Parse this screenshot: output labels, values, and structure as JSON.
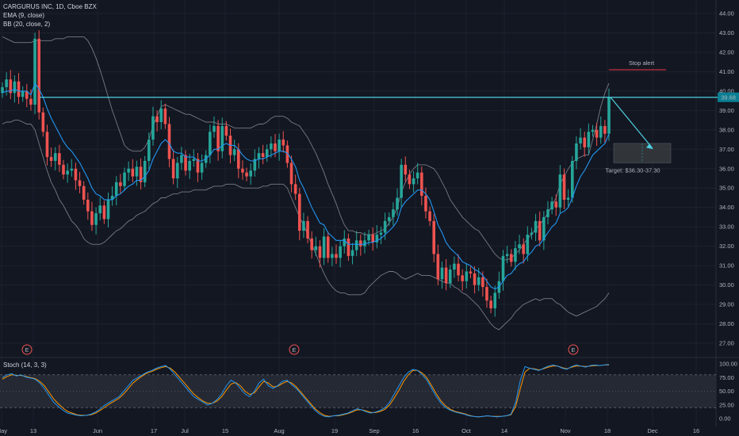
{
  "legend": {
    "symbol_line": "CARGURUS INC, 1D, Cboe BZX",
    "ema_label": "EMA (9, close)",
    "bb_label": "BB (20, close, 2)",
    "stoch_label": "Stoch (14, 3, 3)"
  },
  "price_badge": "39.68",
  "annotations": {
    "stop_alert": "Stop alert",
    "target": "Target: $36.30-37.30",
    "earnings_marker": "E"
  },
  "colors": {
    "background": "#131722",
    "up": "#26a69a",
    "down": "#ef5350",
    "ema": "#2196f3",
    "bollinger": "#787b86",
    "resistance": "#4dd0e1",
    "stop_line": "#f23645",
    "stoch": "#2196f3",
    "stoch_band": "#2a2e39"
  },
  "chart_data": [
    {
      "type": "candlestick",
      "title": "CARGURUS INC, 1D, Cboe BZX",
      "x_ticks": [
        "May",
        "13",
        "Jun",
        "17",
        "Jul",
        "15",
        "Aug",
        "19",
        "Sep",
        "16",
        "Oct",
        "14",
        "Nov",
        "18",
        "Dec",
        "16"
      ],
      "y_ticks": [
        "27.00",
        "28.00",
        "29.00",
        "30.00",
        "31.00",
        "32.00",
        "33.00",
        "34.00",
        "35.00",
        "36.00",
        "37.00",
        "38.00",
        "39.00",
        "40.00",
        "41.00",
        "42.00",
        "43.00",
        "44.00"
      ],
      "ylim": [
        26.5,
        44.3
      ],
      "last_price": 39.68,
      "resistance_level": 39.68,
      "stop_alert_level": 41.1,
      "target_range": [
        36.3,
        37.3
      ],
      "close": [
        40.2,
        40.6,
        39.9,
        40.5,
        39.7,
        40.0,
        39.6,
        39.3,
        42.7,
        38.9,
        37.9,
        36.6,
        36.4,
        36.8,
        36.2,
        35.7,
        35.9,
        36.0,
        35.4,
        35.1,
        34.4,
        33.8,
        33.1,
        33.7,
        34.1,
        33.4,
        34.4,
        34.6,
        35.3,
        35.1,
        35.8,
        36.0,
        35.6,
        36.1,
        35.3,
        36.4,
        37.5,
        38.7,
        38.4,
        39.1,
        38.3,
        36.5,
        35.5,
        36.3,
        36.7,
        35.9,
        36.4,
        36.5,
        35.8,
        36.3,
        36.7,
        37.9,
        38.2,
        36.9,
        38.2,
        37.7,
        36.7,
        37.0,
        36.0,
        35.8,
        35.6,
        35.9,
        36.5,
        36.8,
        36.6,
        37.0,
        37.3,
        36.9,
        37.5,
        37.2,
        36.3,
        35.2,
        34.7,
        32.8,
        33.3,
        32.4,
        31.8,
        32.0,
        31.4,
        32.5,
        31.4,
        31.6,
        31.4,
        32.0,
        32.4,
        31.5,
        31.8,
        32.3,
        32.0,
        32.3,
        32.6,
        32.2,
        32.6,
        32.7,
        33.3,
        33.5,
        33.9,
        34.5,
        36.2,
        35.7,
        35.2,
        35.5,
        35.8,
        34.6,
        33.8,
        33.3,
        31.6,
        30.3,
        30.9,
        30.1,
        30.8,
        31.1,
        30.5,
        30.2,
        30.7,
        30.6,
        30.0,
        30.4,
        29.9,
        29.2,
        28.8,
        29.6,
        30.2,
        31.5,
        31.6,
        31.2,
        31.9,
        32.1,
        31.6,
        32.6,
        32.7,
        33.3,
        32.3,
        33.5,
        33.9,
        34.3,
        34.0,
        35.7,
        34.4,
        34.5,
        36.4,
        37.3,
        37.6,
        37.1,
        37.9,
        38.0,
        37.6,
        38.2,
        37.8,
        39.7
      ],
      "series": [
        {
          "name": "EMA (9, close)",
          "values": [
            39.9,
            40.0,
            40.0,
            40.1,
            40.0,
            40.0,
            40.0,
            39.8,
            40.4,
            40.1,
            39.7,
            39.1,
            38.6,
            38.2,
            37.8,
            37.4,
            37.1,
            36.9,
            36.6,
            36.3,
            35.9,
            35.5,
            35.0,
            34.7,
            34.6,
            34.4,
            34.4,
            34.4,
            34.6,
            34.7,
            34.9,
            35.1,
            35.2,
            35.4,
            35.4,
            35.6,
            35.9,
            36.5,
            36.9,
            37.3,
            37.5,
            37.3,
            36.9,
            36.8,
            36.8,
            36.6,
            36.6,
            36.6,
            36.4,
            36.4,
            36.5,
            36.7,
            37.0,
            37.0,
            37.2,
            37.3,
            37.2,
            37.2,
            37.0,
            36.7,
            36.5,
            36.4,
            36.4,
            36.5,
            36.5,
            36.6,
            36.7,
            36.8,
            36.9,
            36.9,
            36.8,
            36.5,
            36.1,
            35.4,
            35.0,
            34.5,
            34.0,
            33.6,
            33.2,
            33.1,
            32.7,
            32.5,
            32.3,
            32.3,
            32.3,
            32.1,
            32.1,
            32.1,
            32.1,
            32.1,
            32.2,
            32.2,
            32.3,
            32.4,
            32.6,
            32.8,
            33.0,
            33.3,
            34.0,
            34.3,
            34.5,
            34.7,
            34.9,
            34.9,
            34.7,
            34.4,
            33.8,
            33.1,
            32.7,
            32.2,
            31.9,
            31.7,
            31.5,
            31.2,
            31.1,
            31.0,
            30.8,
            30.7,
            30.5,
            30.2,
            29.9,
            29.8,
            29.9,
            30.2,
            30.5,
            30.6,
            30.9,
            31.1,
            31.2,
            31.5,
            31.7,
            32.0,
            32.1,
            32.4,
            32.7,
            33.0,
            33.2,
            33.7,
            33.8,
            34.0,
            34.5,
            35.1,
            35.6,
            35.9,
            36.3,
            36.7,
            36.9,
            37.1,
            37.3,
            37.8
          ]
        },
        {
          "name": "BB upper",
          "values": [
            42.8,
            42.7,
            42.6,
            42.5,
            42.5,
            42.5,
            42.5,
            42.5,
            42.6,
            42.6,
            42.6,
            42.6,
            42.6,
            42.7,
            42.7,
            42.7,
            42.8,
            42.8,
            42.8,
            42.8,
            42.8,
            42.6,
            42.2,
            41.7,
            41.1,
            40.4,
            39.7,
            39.0,
            38.4,
            37.8,
            37.2,
            37.0,
            36.9,
            36.9,
            36.9,
            37.1,
            37.5,
            38.2,
            38.7,
            39.2,
            39.3,
            39.2,
            39.1,
            39.0,
            38.9,
            38.8,
            38.8,
            38.7,
            38.6,
            38.5,
            38.4,
            38.4,
            38.4,
            38.3,
            38.3,
            38.3,
            38.2,
            38.1,
            38.1,
            38.1,
            38.1,
            38.1,
            38.2,
            38.3,
            38.3,
            38.4,
            38.6,
            38.7,
            38.7,
            38.7,
            38.6,
            38.4,
            38.3,
            38.2,
            37.9,
            37.6,
            37.2,
            36.8,
            36.3,
            35.8,
            35.2,
            34.7,
            34.2,
            33.6,
            33.1,
            32.8,
            32.8,
            32.7,
            32.7,
            32.6,
            32.6,
            32.6,
            32.7,
            32.8,
            32.9,
            33.2,
            33.5,
            34.0,
            34.8,
            35.3,
            35.7,
            36.0,
            36.2,
            36.2,
            36.2,
            36.1,
            36.0,
            35.7,
            35.3,
            34.9,
            34.4,
            34.1,
            33.8,
            33.5,
            33.3,
            33.1,
            32.9,
            32.8,
            32.5,
            32.2,
            31.9,
            31.6,
            31.4,
            31.3,
            31.3,
            31.4,
            31.6,
            31.8,
            32.1,
            32.4,
            32.6,
            32.9,
            33.1,
            33.4,
            33.7,
            34.1,
            34.5,
            35.2,
            35.6,
            36.0,
            36.3,
            36.5,
            36.6,
            36.7,
            36.7,
            37.5,
            38.3,
            39.2,
            39.9,
            40.4
          ]
        },
        {
          "name": "BB lower",
          "values": [
            38.3,
            38.4,
            38.4,
            38.5,
            38.5,
            38.4,
            38.3,
            38.3,
            38.0,
            37.3,
            36.6,
            35.9,
            35.3,
            34.9,
            34.4,
            34.1,
            33.7,
            33.3,
            33.1,
            32.8,
            32.4,
            32.2,
            32.1,
            32.1,
            32.1,
            32.2,
            32.4,
            32.6,
            32.8,
            32.9,
            33.1,
            33.3,
            33.4,
            33.6,
            33.7,
            33.8,
            34.0,
            34.2,
            34.3,
            34.5,
            34.5,
            34.6,
            34.7,
            34.7,
            34.8,
            34.8,
            34.8,
            34.9,
            34.9,
            34.9,
            34.9,
            35.0,
            35.1,
            35.1,
            35.1,
            35.2,
            35.2,
            35.2,
            35.1,
            35.0,
            35.0,
            35.0,
            35.0,
            35.0,
            35.1,
            35.1,
            35.2,
            35.2,
            35.2,
            35.2,
            35.0,
            34.5,
            34.0,
            33.5,
            33.1,
            32.6,
            32.1,
            31.6,
            31.1,
            30.6,
            30.2,
            29.9,
            29.7,
            29.6,
            29.6,
            29.5,
            29.5,
            29.5,
            29.5,
            29.6,
            29.9,
            30.1,
            30.3,
            30.5,
            30.6,
            30.7,
            30.7,
            30.6,
            30.4,
            30.3,
            30.4,
            30.5,
            30.6,
            30.5,
            30.5,
            30.5,
            30.4,
            30.3,
            30.2,
            30.1,
            30.1,
            29.9,
            29.8,
            29.6,
            29.5,
            29.3,
            29.1,
            28.9,
            28.6,
            28.3,
            28.0,
            27.8,
            27.7,
            27.9,
            28.1,
            28.3,
            28.6,
            28.8,
            29.0,
            29.1,
            29.2,
            29.3,
            29.2,
            29.3,
            29.3,
            29.3,
            29.1,
            29.0,
            28.8,
            28.6,
            28.5,
            28.4,
            28.5,
            28.6,
            28.7,
            28.8,
            28.9,
            29.1,
            29.3,
            29.6
          ]
        }
      ],
      "earnings_markers": 3
    },
    {
      "type": "line",
      "title": "Stoch (14, 3, 3)",
      "y_ticks": [
        "0.00",
        "25.00",
        "50.00",
        "75.00",
        "100.00"
      ],
      "ylim": [
        -5,
        105
      ],
      "bands": [
        20,
        80
      ],
      "series": [
        {
          "name": "%K",
          "values": [
            75,
            80,
            82,
            78,
            80,
            76,
            74,
            72,
            65,
            55,
            42,
            30,
            22,
            15,
            10,
            8,
            6,
            5,
            6,
            8,
            12,
            18,
            25,
            30,
            35,
            40,
            50,
            60,
            70,
            75,
            80,
            85,
            88,
            92,
            95,
            97,
            90,
            80,
            70,
            60,
            50,
            40,
            35,
            30,
            25,
            28,
            35,
            45,
            60,
            70,
            65,
            55,
            45,
            40,
            50,
            65,
            72,
            60,
            55,
            60,
            68,
            70,
            62,
            55,
            45,
            35,
            25,
            15,
            8,
            4,
            3,
            5,
            6,
            8,
            10,
            14,
            18,
            16,
            12,
            10,
            12,
            15,
            20,
            30,
            45,
            60,
            75,
            85,
            90,
            88,
            80,
            70,
            55,
            40,
            28,
            20,
            15,
            12,
            10,
            8,
            5,
            4,
            3,
            4,
            5,
            4,
            3,
            4,
            5,
            8,
            30,
            70,
            95,
            92,
            90,
            88,
            92,
            96,
            98,
            96,
            92,
            90,
            95,
            98,
            96,
            94,
            97,
            98,
            97,
            98,
            99
          ]
        },
        {
          "name": "%D",
          "values": [
            72,
            77,
            80,
            79,
            79,
            77,
            75,
            73,
            68,
            60,
            48,
            36,
            27,
            19,
            13,
            10,
            7,
            6,
            6,
            7,
            10,
            15,
            21,
            27,
            32,
            37,
            45,
            55,
            65,
            72,
            78,
            83,
            86,
            90,
            93,
            95,
            92,
            85,
            75,
            65,
            55,
            45,
            38,
            32,
            28,
            28,
            32,
            40,
            52,
            63,
            66,
            60,
            50,
            44,
            47,
            58,
            68,
            65,
            58,
            59,
            64,
            68,
            65,
            58,
            48,
            38,
            28,
            18,
            11,
            6,
            4,
            5,
            5,
            7,
            9,
            12,
            16,
            16,
            14,
            11,
            11,
            13,
            17,
            25,
            38,
            52,
            68,
            80,
            88,
            88,
            83,
            74,
            60,
            45,
            32,
            23,
            17,
            13,
            11,
            9,
            6,
            4,
            3,
            4,
            5,
            4,
            4,
            4,
            5,
            7,
            22,
            55,
            85,
            92,
            91,
            89,
            91,
            94,
            96,
            96,
            93,
            91,
            94,
            96,
            96,
            95,
            96,
            97,
            97,
            98,
            98
          ]
        }
      ]
    }
  ]
}
